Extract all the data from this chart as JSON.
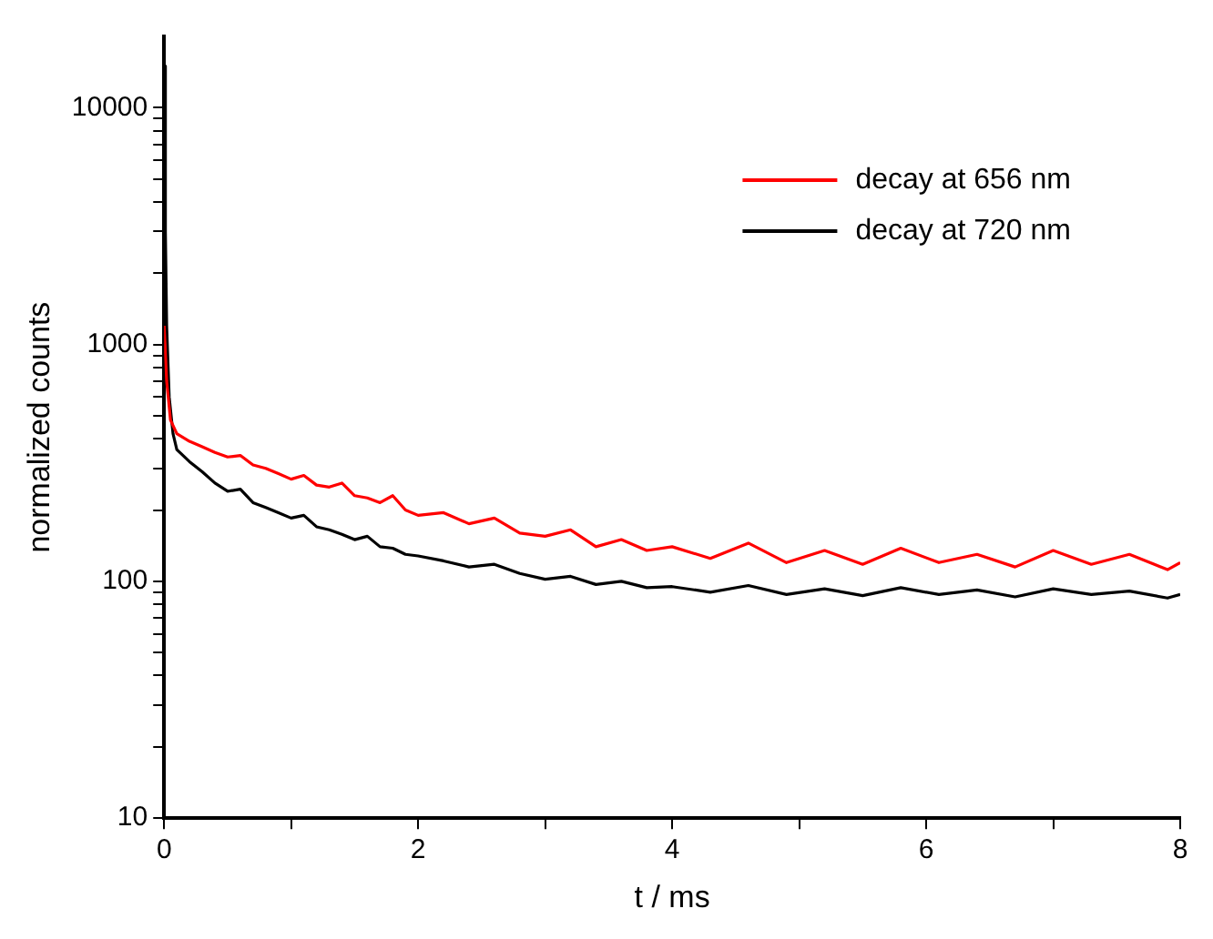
{
  "chart_data": {
    "type": "line",
    "xlabel": "t / ms",
    "ylabel": "normalized counts",
    "log": "y",
    "legend": "top right",
    "grid": false,
    "marker": "none",
    "line_style": "solid",
    "xlim": [
      0,
      8
    ],
    "xticks": [
      0,
      {
        "value": 1,
        "label": null
      },
      2,
      {
        "value": 3,
        "label": null
      },
      4,
      {
        "value": 5,
        "label": null
      },
      6,
      {
        "value": 7,
        "label": null
      },
      8
    ],
    "ylim": [
      10,
      20000
    ],
    "yticks": [
      10,
      {
        "value": 20,
        "label": null
      },
      {
        "value": 30,
        "label": null
      },
      {
        "value": 40,
        "label": null
      },
      {
        "value": 50,
        "label": null
      },
      {
        "value": 60,
        "label": null
      },
      {
        "value": 70,
        "label": null
      },
      {
        "value": 80,
        "label": null
      },
      {
        "value": 90,
        "label": null
      },
      100,
      {
        "value": 200,
        "label": null
      },
      {
        "value": 300,
        "label": null
      },
      {
        "value": 400,
        "label": null
      },
      {
        "value": 500,
        "label": null
      },
      {
        "value": 600,
        "label": null
      },
      {
        "value": 700,
        "label": null
      },
      {
        "value": 800,
        "label": null
      },
      {
        "value": 900,
        "label": null
      },
      1000,
      {
        "value": 2000,
        "label": null
      },
      {
        "value": 3000,
        "label": null
      },
      {
        "value": 4000,
        "label": null
      },
      {
        "value": 5000,
        "label": null
      },
      {
        "value": 6000,
        "label": null
      },
      {
        "value": 7000,
        "label": null
      },
      {
        "value": 8000,
        "label": null
      },
      {
        "value": 9000,
        "label": null
      },
      10000
    ],
    "series": [
      {
        "name": "decay at 656 nm",
        "color": "#ff0000",
        "x": [
          0,
          0.02,
          0.05,
          0.1,
          0.2,
          0.3,
          0.4,
          0.5,
          0.6,
          0.7,
          0.8,
          0.9,
          1.0,
          1.1,
          1.2,
          1.3,
          1.4,
          1.5,
          1.6,
          1.7,
          1.8,
          1.9,
          2.0,
          2.2,
          2.4,
          2.6,
          2.8,
          3.0,
          3.2,
          3.4,
          3.6,
          3.8,
          4.0,
          4.3,
          4.6,
          4.9,
          5.2,
          5.5,
          5.8,
          6.1,
          6.4,
          6.7,
          7.0,
          7.3,
          7.6,
          7.9,
          8.0
        ],
        "values": [
          1200,
          700,
          480,
          420,
          390,
          370,
          350,
          335,
          340,
          310,
          300,
          285,
          270,
          280,
          255,
          250,
          260,
          230,
          225,
          215,
          230,
          200,
          190,
          195,
          175,
          185,
          160,
          155,
          165,
          140,
          150,
          135,
          140,
          125,
          145,
          120,
          135,
          118,
          138,
          120,
          130,
          115,
          135,
          118,
          130,
          112,
          120
        ]
      },
      {
        "name": "decay at 720 nm",
        "color": "#000000",
        "x": [
          0,
          0.01,
          0.02,
          0.04,
          0.07,
          0.1,
          0.2,
          0.3,
          0.4,
          0.5,
          0.6,
          0.7,
          0.8,
          0.9,
          1.0,
          1.1,
          1.2,
          1.3,
          1.4,
          1.5,
          1.6,
          1.7,
          1.8,
          1.9,
          2.0,
          2.2,
          2.4,
          2.6,
          2.8,
          3.0,
          3.2,
          3.4,
          3.6,
          3.8,
          4.0,
          4.3,
          4.6,
          4.9,
          5.2,
          5.5,
          5.8,
          6.1,
          6.4,
          6.7,
          7.0,
          7.3,
          7.6,
          7.9,
          8.0
        ],
        "values": [
          15000,
          3000,
          1200,
          600,
          420,
          360,
          320,
          290,
          260,
          240,
          245,
          215,
          205,
          195,
          185,
          190,
          170,
          165,
          158,
          150,
          155,
          140,
          138,
          130,
          128,
          122,
          115,
          118,
          108,
          102,
          105,
          97,
          100,
          94,
          95,
          90,
          96,
          88,
          93,
          87,
          94,
          88,
          92,
          86,
          93,
          88,
          91,
          85,
          88
        ]
      }
    ]
  }
}
